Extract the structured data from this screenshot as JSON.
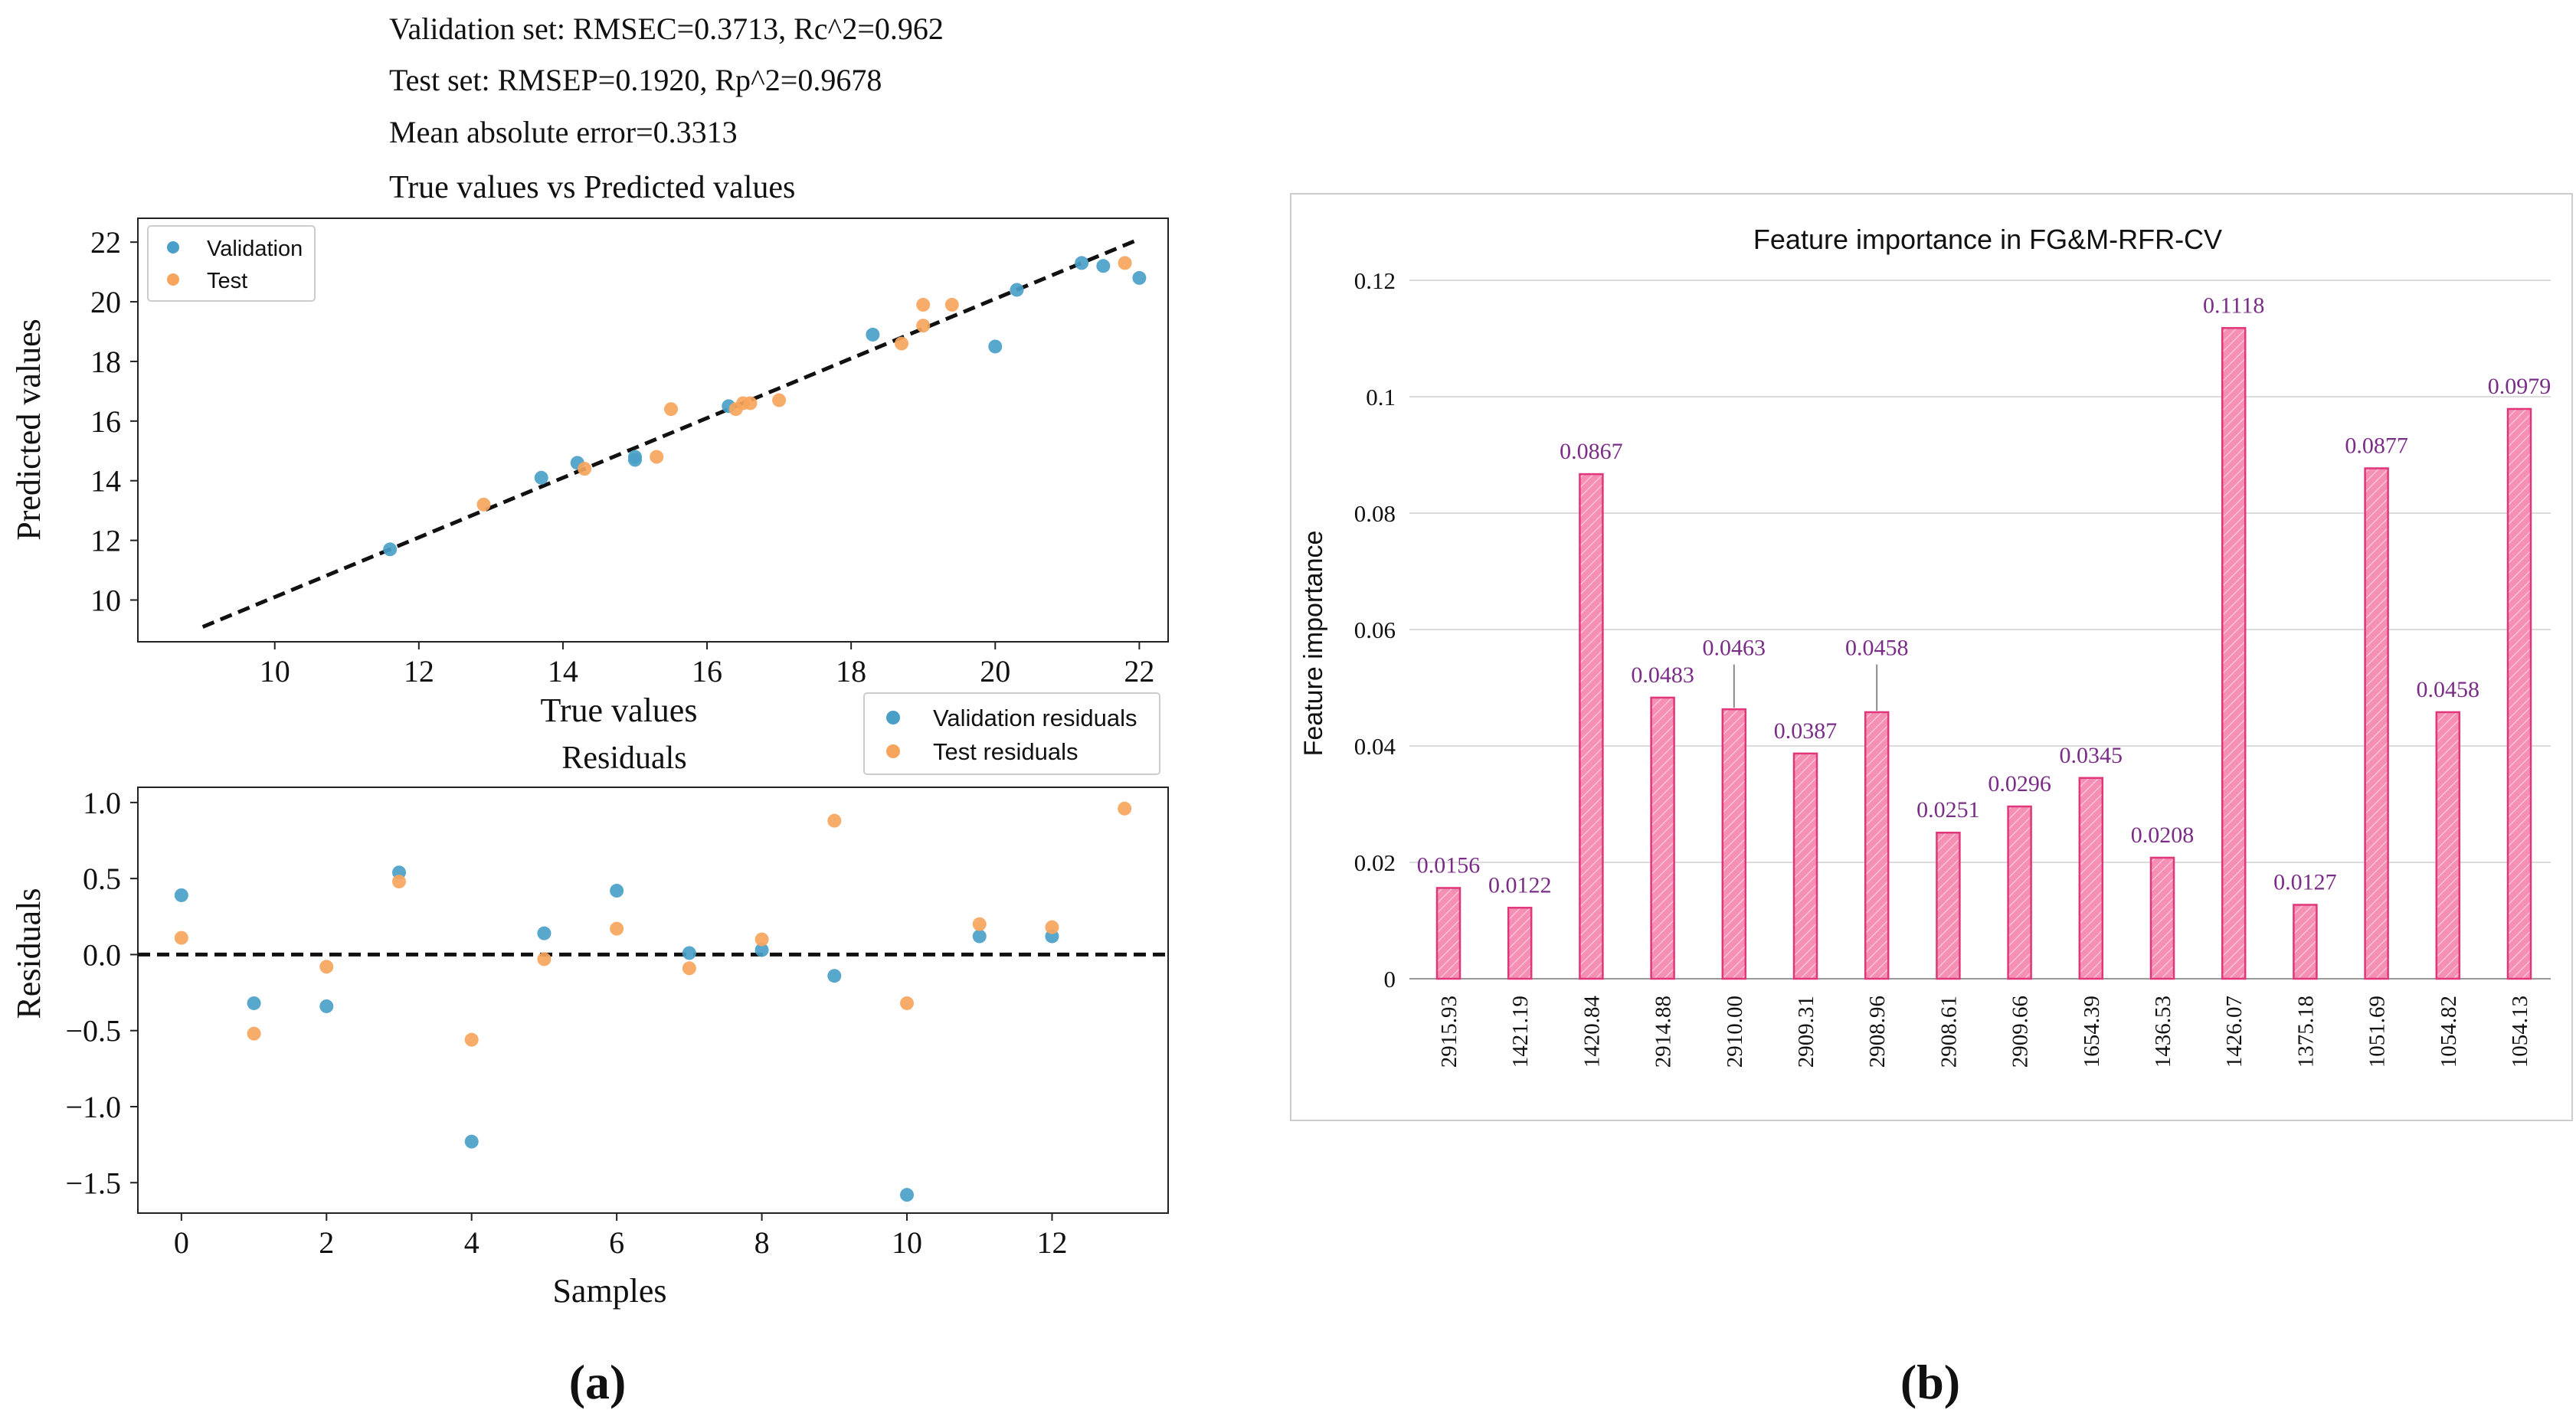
{
  "colors": {
    "validation": "#4a9fc8",
    "test": "#f7a55c",
    "bar_fill": "#f58fb4",
    "bar_stroke": "#e0367a",
    "bar_label": "#7a2d86",
    "text": "#111111",
    "grid": "#dcdcdc",
    "frame": "#cccccc"
  },
  "panel_a": {
    "header_lines": [
      "Validation set: RMSEC=0.3713, Rc^2=0.962",
      "Test set: RMSEP=0.1920, Rp^2=0.9678",
      "Mean absolute error=0.3313"
    ],
    "caption": "(a)"
  },
  "panel_b": {
    "caption": "(b)"
  },
  "chart_data": [
    {
      "type": "scatter",
      "title": "True values vs Predicted values",
      "xlabel": "True values",
      "ylabel": "Predicted values",
      "xlim": [
        8.1,
        22.4
      ],
      "ylim": [
        8.6,
        22.8
      ],
      "xticks": [
        10,
        12,
        14,
        16,
        18,
        20,
        22
      ],
      "yticks": [
        10,
        12,
        14,
        16,
        18,
        20,
        22
      ],
      "legend": [
        "Validation",
        "Test"
      ],
      "legend_position": "top-left",
      "reference_line": {
        "from": [
          9.0,
          9.1
        ],
        "to": [
          22.0,
          22.1
        ],
        "style": "dashed"
      },
      "series": [
        {
          "name": "Validation",
          "x": [
            11.6,
            13.7,
            14.2,
            15.0,
            15.0,
            16.3,
            18.3,
            20.0,
            20.3,
            21.2,
            21.5,
            22.0
          ],
          "y": [
            11.7,
            14.1,
            14.6,
            14.8,
            14.7,
            16.5,
            18.9,
            18.5,
            20.4,
            21.3,
            21.2,
            20.8
          ]
        },
        {
          "name": "Test",
          "x": [
            12.9,
            14.3,
            15.3,
            15.5,
            16.4,
            16.5,
            16.6,
            17.0,
            18.7,
            19.0,
            19.0,
            19.4,
            21.8
          ],
          "y": [
            13.2,
            14.4,
            14.8,
            16.4,
            16.4,
            16.6,
            16.6,
            16.7,
            18.6,
            19.9,
            19.2,
            19.9,
            21.3
          ]
        }
      ]
    },
    {
      "type": "scatter",
      "title": "Residuals",
      "xlabel": "Samples",
      "ylabel": "Residuals",
      "xlim": [
        -0.6,
        13.6
      ],
      "ylim": [
        -1.7,
        1.1
      ],
      "xticks": [
        0,
        2,
        4,
        6,
        8,
        10,
        12
      ],
      "yticks": [
        1.0,
        0.5,
        0.0,
        -0.5,
        -1.0,
        -1.5
      ],
      "ytick_labels": [
        "1.0",
        "0.5",
        "0.0",
        "−0.5",
        "−1.0",
        "−1.5"
      ],
      "legend": [
        "Validation residuals",
        "Test residuals"
      ],
      "legend_position": "top-right",
      "reference_line": {
        "y": 0.0,
        "style": "dashed"
      },
      "series": [
        {
          "name": "Validation residuals",
          "x": [
            0,
            1,
            2,
            3,
            4,
            5,
            6,
            7,
            8,
            9,
            10,
            11,
            12
          ],
          "y": [
            0.39,
            -0.32,
            -0.34,
            0.54,
            -1.23,
            0.14,
            0.42,
            0.01,
            0.03,
            -0.14,
            -1.58,
            0.12,
            0.12
          ]
        },
        {
          "name": "Test residuals",
          "x": [
            0,
            1,
            2,
            3,
            4,
            5,
            6,
            7,
            8,
            9,
            10,
            11,
            12,
            13
          ],
          "y": [
            0.11,
            -0.52,
            -0.08,
            0.48,
            -0.56,
            -0.03,
            0.17,
            -0.09,
            0.1,
            0.88,
            -0.32,
            0.2,
            0.18,
            0.96
          ]
        }
      ]
    },
    {
      "type": "bar",
      "title": "Feature importance in FG&M-RFR-CV",
      "xlabel": "",
      "ylabel": "Feature importance",
      "ylim": [
        0,
        0.12
      ],
      "yticks": [
        0,
        0.02,
        0.04,
        0.06,
        0.08,
        0.1,
        0.12
      ],
      "ytick_labels": [
        "0",
        "0.02",
        "0.04",
        "0.06",
        "0.08",
        "0.1",
        "0.12"
      ],
      "grid": true,
      "categories": [
        "2915.93",
        "1421.19",
        "1420.84",
        "2914.88",
        "2910.00",
        "2909.31",
        "2908.96",
        "2908.61",
        "2909.66",
        "1654.39",
        "1436.53",
        "1426.07",
        "1375.18",
        "1051.69",
        "1054.82",
        "1054.13"
      ],
      "values": [
        0.0156,
        0.0122,
        0.0867,
        0.0483,
        0.0463,
        0.0387,
        0.0458,
        0.0251,
        0.0296,
        0.0345,
        0.0208,
        0.1118,
        0.0127,
        0.0877,
        0.0458,
        0.0979
      ],
      "value_labels": [
        "0.0156",
        "0.0122",
        "0.0867",
        "0.0483",
        "0.0463",
        "0.0387",
        "0.0458",
        "0.0251",
        "0.0296",
        "0.0345",
        "0.0208",
        "0.1118",
        "0.0127",
        "0.0877",
        "0.0458",
        "0.0979"
      ]
    }
  ]
}
